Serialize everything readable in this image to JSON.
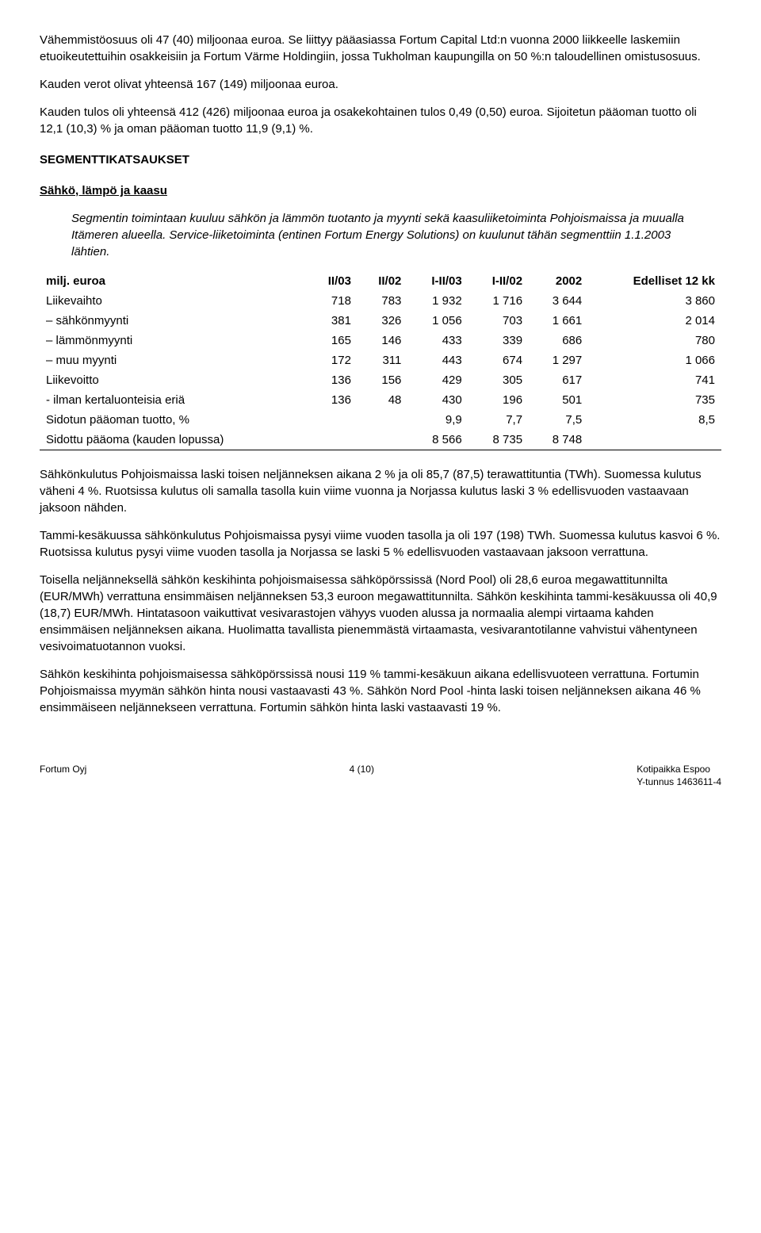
{
  "paragraphs": {
    "p1": "Vähemmistöosuus oli 47 (40) miljoonaa euroa. Se liittyy pääasiassa Fortum Capital Ltd:n vuonna 2000 liikkeelle laskemiin etuoikeutettuihin osakkeisiin ja Fortum Värme Holdingiin, jossa Tukholman kaupungilla on 50 %:n taloudellinen omistusosuus.",
    "p2": "Kauden verot olivat yhteensä 167 (149) miljoonaa euroa.",
    "p3": "Kauden tulos oli yhteensä 412 (426) miljoonaa euroa ja osakekohtainen tulos 0,49 (0,50) euroa. Sijoitetun pääoman tuotto oli 12,1 (10,3) % ja oman pääoman tuotto 11,9 (9,1) %.",
    "p4": "Sähkönkulutus Pohjoismaissa laski toisen neljänneksen aikana 2 % ja oli 85,7 (87,5) terawattituntia (TWh). Suomessa kulutus väheni 4 %. Ruotsissa kulutus oli samalla tasolla kuin viime vuonna ja Norjassa kulutus laski 3 % edellisvuoden vastaavaan jaksoon nähden.",
    "p5": "Tammi-kesäkuussa sähkönkulutus Pohjoismaissa pysyi viime vuoden tasolla ja oli 197 (198) TWh. Suomessa kulutus kasvoi 6 %. Ruotsissa kulutus pysyi viime vuoden tasolla ja Norjassa se laski 5 % edellisvuoden vastaavaan jaksoon verrattuna.",
    "p6": "Toisella neljänneksellä sähkön keskihinta pohjoismaisessa sähköpörssissä (Nord Pool) oli 28,6 euroa megawattitunnilta (EUR/MWh) verrattuna ensimmäisen neljänneksen 53,3 euroon megawattitunnilta. Sähkön keskihinta tammi-kesäkuussa oli 40,9 (18,7) EUR/MWh. Hintatasoon vaikuttivat vesivarastojen vähyys vuoden alussa ja normaalia alempi virtaama kahden ensimmäisen neljänneksen aikana. Huolimatta tavallista pienemmästä virtaamasta, vesivarantotilanne vahvistui vähentyneen vesivoimatuotannon vuoksi.",
    "p7": "Sähkön keskihinta pohjoismaisessa sähköpörssissä nousi 119 % tammi-kesäkuun aikana edellisvuoteen verrattuna. Fortumin Pohjoismaissa myymän sähkön hinta nousi vastaavasti 43 %. Sähkön Nord Pool -hinta laski toisen neljänneksen aikana 46 % ensimmäiseen neljännekseen verrattuna. Fortumin sähkön hinta laski vastaavasti 19 %."
  },
  "headings": {
    "segment": "SEGMENTTIKATSAUKSET",
    "sub": "Sähkö, lämpö ja kaasu"
  },
  "indent_text": "Segmentin toimintaan kuuluu sähkön ja lämmön tuotanto ja myynti sekä kaasuliiketoiminta Pohjoismaissa ja muualla Itämeren alueella. Service-liiketoiminta (entinen Fortum Energy Solutions) on kuulunut tähän segmenttiin 1.1.2003 lähtien.",
  "table": {
    "header": [
      "milj. euroa",
      "II/03",
      "II/02",
      "I-II/03",
      "I-II/02",
      "2002",
      "Edelliset 12 kk"
    ],
    "rows": [
      [
        "Liikevaihto",
        "718",
        "783",
        "1 932",
        "1 716",
        "3 644",
        "3 860"
      ],
      [
        "– sähkönmyynti",
        "381",
        "326",
        "1 056",
        "703",
        "1 661",
        "2 014"
      ],
      [
        "– lämmönmyynti",
        "165",
        "146",
        "433",
        "339",
        "686",
        "780"
      ],
      [
        "– muu myynti",
        "172",
        "311",
        "443",
        "674",
        "1 297",
        "1 066"
      ],
      [
        "Liikevoitto",
        "136",
        "156",
        "429",
        "305",
        "617",
        "741"
      ],
      [
        "- ilman kertaluonteisia eriä",
        "136",
        "48",
        "430",
        "196",
        "501",
        "735"
      ],
      [
        "Sidotun pääoman tuotto, %",
        "",
        "",
        "9,9",
        "7,7",
        "7,5",
        "8,5"
      ],
      [
        "Sidottu pääoma (kauden lopussa)",
        "",
        "",
        "8 566",
        "8 735",
        "8 748",
        ""
      ]
    ]
  },
  "footer": {
    "left": "Fortum Oyj",
    "center": "4 (10)",
    "right1": "Kotipaikka Espoo",
    "right2": "Y-tunnus 1463611-4"
  }
}
